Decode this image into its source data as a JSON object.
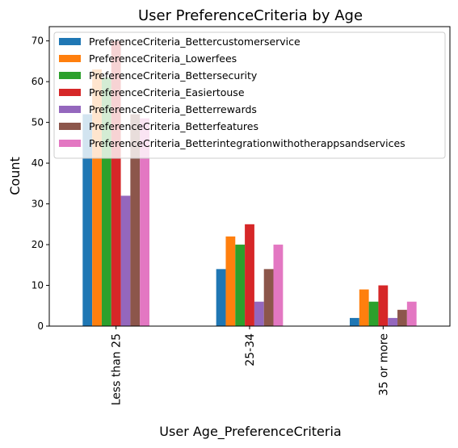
{
  "chart_data": {
    "type": "bar",
    "title": "User PreferenceCriteria by Age",
    "xlabel": "User Age_PreferenceCriteria",
    "ylabel": "Count",
    "categories": [
      "Less than 25",
      "25-34",
      "35 or more"
    ],
    "ylim": [
      0,
      73.5
    ],
    "yticks": [
      0,
      10,
      20,
      30,
      40,
      50,
      60,
      70
    ],
    "grid": false,
    "legend_position": "top-left",
    "series": [
      {
        "name": "PreferenceCriteria_Bettercustomerservice",
        "color": "#1f77b4",
        "values": [
          52,
          14,
          2
        ]
      },
      {
        "name": "PreferenceCriteria_Lowerfees",
        "color": "#ff7f0e",
        "values": [
          63,
          22,
          9
        ]
      },
      {
        "name": "PreferenceCriteria_Bettersecurity",
        "color": "#2ca02c",
        "values": [
          61,
          20,
          6
        ]
      },
      {
        "name": "PreferenceCriteria_Easiertouse",
        "color": "#d62728",
        "values": [
          70,
          25,
          10
        ]
      },
      {
        "name": "PreferenceCriteria_Betterrewards",
        "color": "#9467bd",
        "values": [
          32,
          6,
          2
        ]
      },
      {
        "name": "PreferenceCriteria_Betterfeatures",
        "color": "#8c564b",
        "values": [
          52,
          14,
          4
        ]
      },
      {
        "name": "PreferenceCriteria_Betterintegrationwithotherappsandservices",
        "color": "#e377c2",
        "values": [
          51,
          20,
          6
        ]
      }
    ]
  }
}
